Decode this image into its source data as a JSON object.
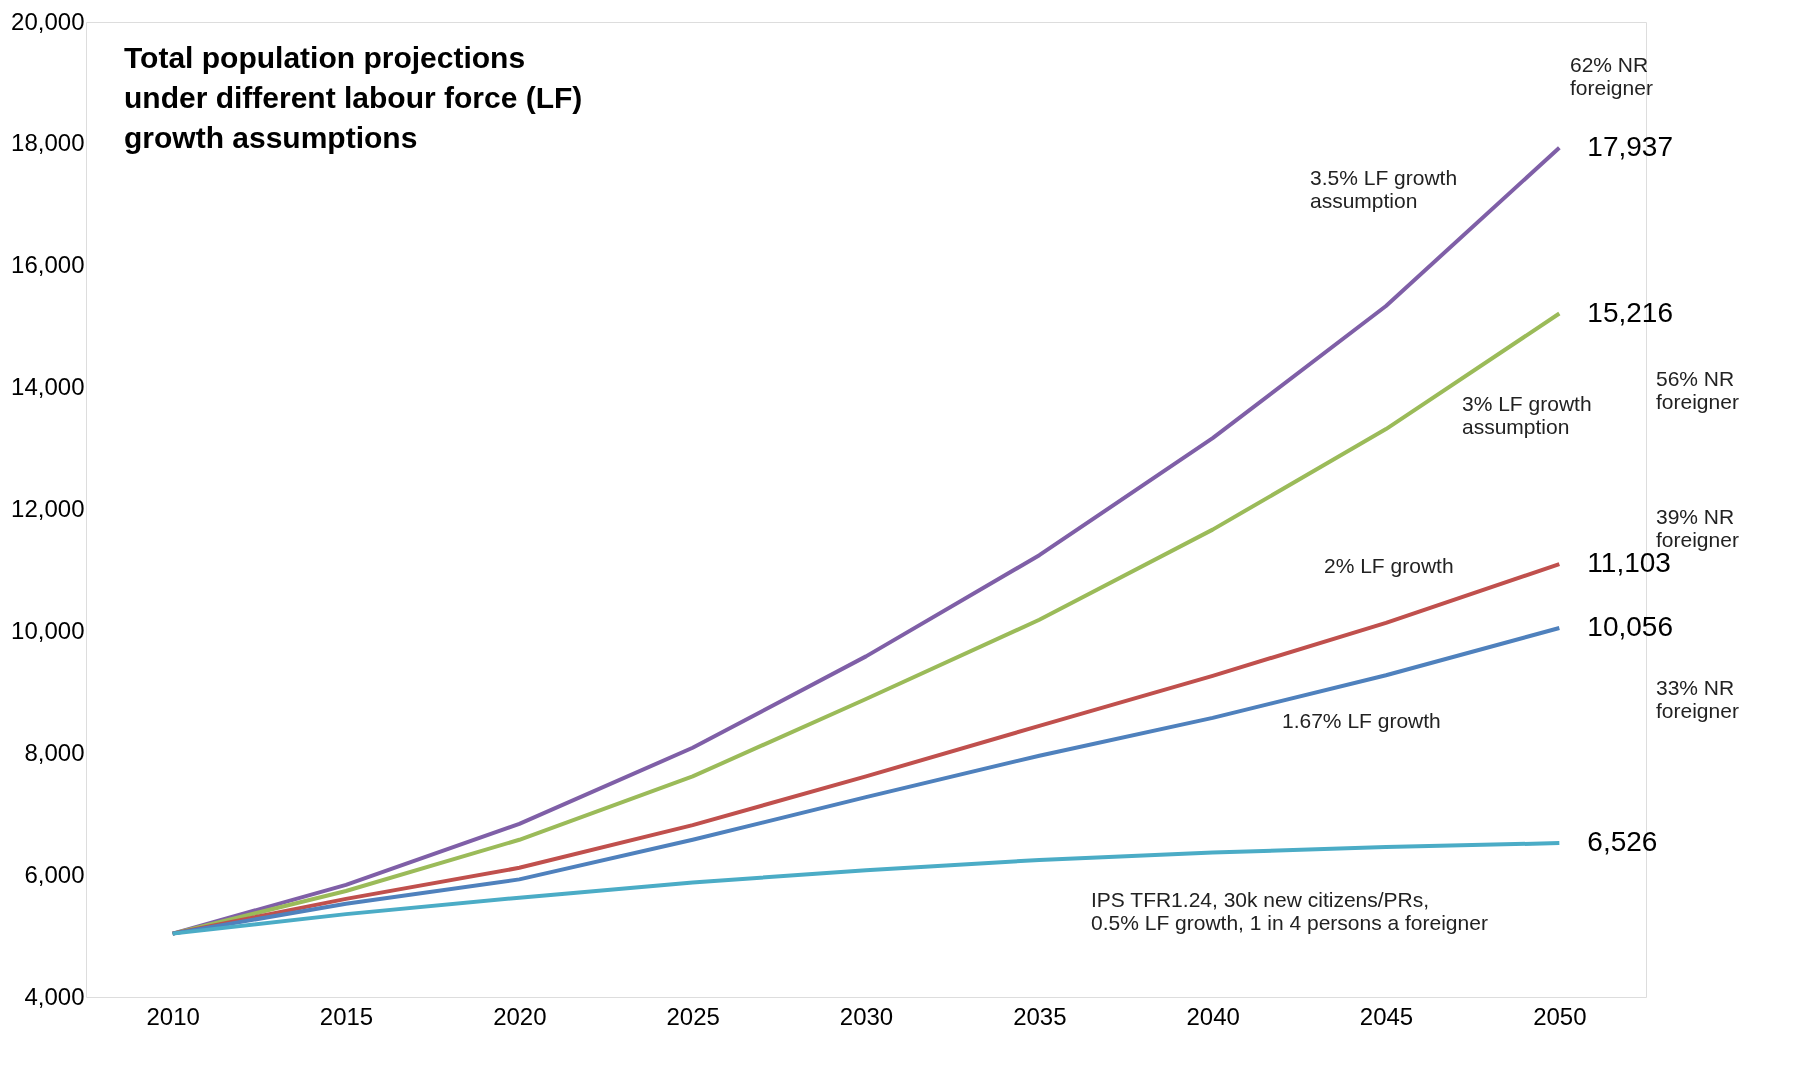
{
  "chart_data": {
    "type": "line",
    "title": "Total population projections\nunder different labour force (LF)\ngrowth assumptions",
    "x": [
      2010,
      2015,
      2020,
      2025,
      2030,
      2035,
      2040,
      2045,
      2050
    ],
    "series": [
      {
        "name": "3.5% LF growth\nassumption",
        "color": "#7f5fa7",
        "values": [
          5040,
          5840,
          6840,
          8090,
          9590,
          11250,
          13170,
          15340,
          17937
        ],
        "value_labels": [
          null,
          null,
          null,
          null,
          null,
          null,
          null,
          null,
          "17,937"
        ]
      },
      {
        "name": "3% LF growth\nassumption",
        "color": "#9bbb59",
        "values": [
          5040,
          5740,
          6580,
          7620,
          8890,
          10190,
          11670,
          13320,
          15216
        ],
        "value_labels": [
          null,
          null,
          null,
          null,
          null,
          null,
          null,
          null,
          "15,216"
        ]
      },
      {
        "name": "2% LF growth",
        "color": "#c0504d",
        "values": [
          5040,
          5610,
          6120,
          6820,
          7620,
          8450,
          9270,
          10140,
          11103
        ],
        "value_labels": [
          null,
          null,
          null,
          null,
          null,
          null,
          null,
          null,
          "11,103"
        ]
      },
      {
        "name": "1.67% LF growth",
        "color": "#4f81bd",
        "values": [
          5040,
          5530,
          5930,
          6580,
          7280,
          7960,
          8580,
          9280,
          10056
        ],
        "value_labels": [
          null,
          null,
          null,
          null,
          null,
          null,
          null,
          null,
          "10,056"
        ]
      },
      {
        "name": "IPS TFR1.24, 30k new citizens/PRs,\n0.5% LF growth, 1 in 4 persons a foreigner",
        "color": "#4bacc6",
        "values": [
          5040,
          5360,
          5630,
          5880,
          6080,
          6250,
          6370,
          6460,
          6526
        ],
        "value_labels": [
          null,
          null,
          null,
          null,
          null,
          null,
          null,
          null,
          "6,526"
        ]
      }
    ],
    "annotations": [
      "62% NR\nforeigner",
      "56% NR\nforeigner",
      "39% NR\nforeigner",
      "33% NR\nforeigner"
    ],
    "xlim": [
      2007.5,
      2052.5
    ],
    "xticks": [
      2010,
      2015,
      2020,
      2025,
      2030,
      2035,
      2040,
      2045,
      2050
    ],
    "ylim": [
      4000,
      20000
    ],
    "yticks": [
      {
        "value": 4000,
        "label": "4,000"
      },
      {
        "value": 6000,
        "label": "6,000"
      },
      {
        "value": 8000,
        "label": "8,000"
      },
      {
        "value": 10000,
        "label": "10,000"
      },
      {
        "value": 12000,
        "label": "12,000"
      },
      {
        "value": 14000,
        "label": "14,000"
      },
      {
        "value": 16000,
        "label": "16,000"
      },
      {
        "value": 18000,
        "label": "18,000"
      },
      {
        "value": 20000,
        "label": "20,000"
      }
    ],
    "grid": false
  }
}
